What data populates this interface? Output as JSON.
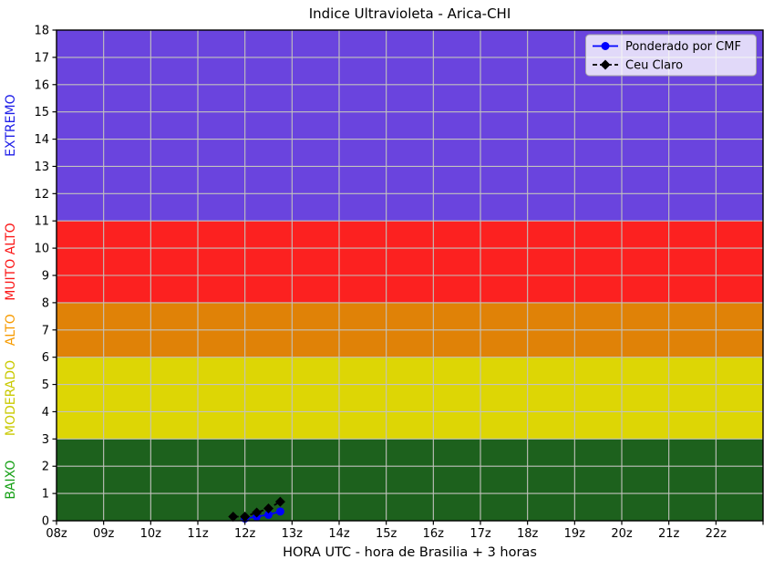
{
  "chart_data": {
    "type": "line",
    "title": "Indice Ultravioleta - Arica-CHI",
    "xlabel": "HORA UTC - hora de Brasilia + 3 horas",
    "ylabel": "",
    "xlim": [
      8,
      23
    ],
    "ylim": [
      0,
      18
    ],
    "grid": true,
    "grid_color": "#c2c2bd",
    "axis_color": "#000000",
    "x_tick_hours": [
      8,
      9,
      10,
      11,
      12,
      13,
      14,
      15,
      16,
      17,
      18,
      19,
      20,
      21,
      22,
      23
    ],
    "x_tick_labels": [
      "08z",
      "09z",
      "10z",
      "11z",
      "12z",
      "13z",
      "14z",
      "15z",
      "16z",
      "17z",
      "18z",
      "19z",
      "20z",
      "21z",
      "22z",
      ""
    ],
    "y_ticks": [
      0,
      1,
      2,
      3,
      4,
      5,
      6,
      7,
      8,
      9,
      10,
      11,
      12,
      13,
      14,
      15,
      16,
      17,
      18
    ],
    "bands": [
      {
        "label": "BAIXO",
        "from": 0,
        "to": 3,
        "color": "#1d611d",
        "label_color": "#16a016"
      },
      {
        "label": "MODERADO",
        "from": 3,
        "to": 6,
        "color": "#ddd605",
        "label_color": "#c9c900"
      },
      {
        "label": "ALTO",
        "from": 6,
        "to": 8,
        "color": "#e08207",
        "label_color": "#f79b00"
      },
      {
        "label": "MUITO ALTO",
        "from": 8,
        "to": 11,
        "color": "#fc2120",
        "label_color": "#fb1717"
      },
      {
        "label": "EXTREMO",
        "from": 11,
        "to": 18,
        "color": "#6a44de",
        "label_color": "#2020e8"
      }
    ],
    "series": [
      {
        "name": "Ponderado por CMF",
        "color": "#0000ff",
        "line": "solid",
        "marker": "circle",
        "x": [
          12.0,
          12.25,
          12.5,
          12.75
        ],
        "y": [
          0.08,
          0.15,
          0.22,
          0.34
        ]
      },
      {
        "name": "Ceu Claro",
        "color": "#000000",
        "line": "dashed",
        "marker": "diamond",
        "x": [
          11.75,
          12.0,
          12.25,
          12.5,
          12.75
        ],
        "y": [
          0.15,
          0.15,
          0.3,
          0.45,
          0.7
        ]
      }
    ],
    "legend": {
      "position": "top-right",
      "entries": [
        "Ponderado por CMF",
        "Ceu Claro"
      ]
    }
  }
}
